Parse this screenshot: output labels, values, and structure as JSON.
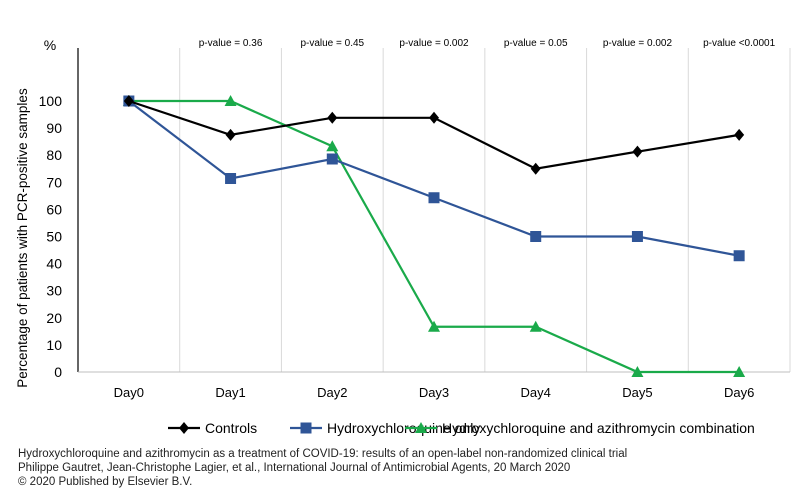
{
  "chart_data": {
    "type": "line",
    "categories": [
      "Day0",
      "Day1",
      "Day2",
      "Day3",
      "Day4",
      "Day5",
      "Day6"
    ],
    "ylabel": "Percentage of patients with PCR-positive samples",
    "yunit": "%",
    "ylim": [
      0,
      100
    ],
    "yticks": [
      0,
      10,
      20,
      30,
      40,
      50,
      60,
      70,
      80,
      90,
      100
    ],
    "grid": "vertical category separators",
    "legend": "bottom",
    "annotations": [
      "",
      "p-value = 0.36",
      "p-value = 0.45",
      "p-value = 0.002",
      "p-value = 0.05",
      "p-value = 0.002",
      "p-value <0.0001"
    ],
    "series": [
      {
        "name": "Controls",
        "color": "#000000",
        "marker": "diamond",
        "values": [
          100,
          87.5,
          93.8,
          93.8,
          75,
          81.3,
          87.5
        ]
      },
      {
        "name": "Hydroxychloroquine only",
        "color": "#2f5597",
        "marker": "square",
        "values": [
          100,
          71.4,
          78.6,
          64.3,
          50,
          50,
          42.9
        ]
      },
      {
        "name": "Hydroxychloroquine and azithromycin combination",
        "color": "#1aaa4a",
        "marker": "triangle",
        "values": [
          100,
          100,
          83.3,
          16.7,
          16.7,
          0,
          0
        ]
      }
    ]
  },
  "caption": {
    "line1": "Hydroxychloroquine and azithromycin as a treatment of COVID-19: results of an open-label non-randomized clinical trial",
    "line2": "Philippe Gautret, Jean-Christophe Lagier, et al., International Journal of Antimicrobial Agents, 20 March 2020",
    "line3": "© 2020 Published by Elsevier B.V."
  }
}
